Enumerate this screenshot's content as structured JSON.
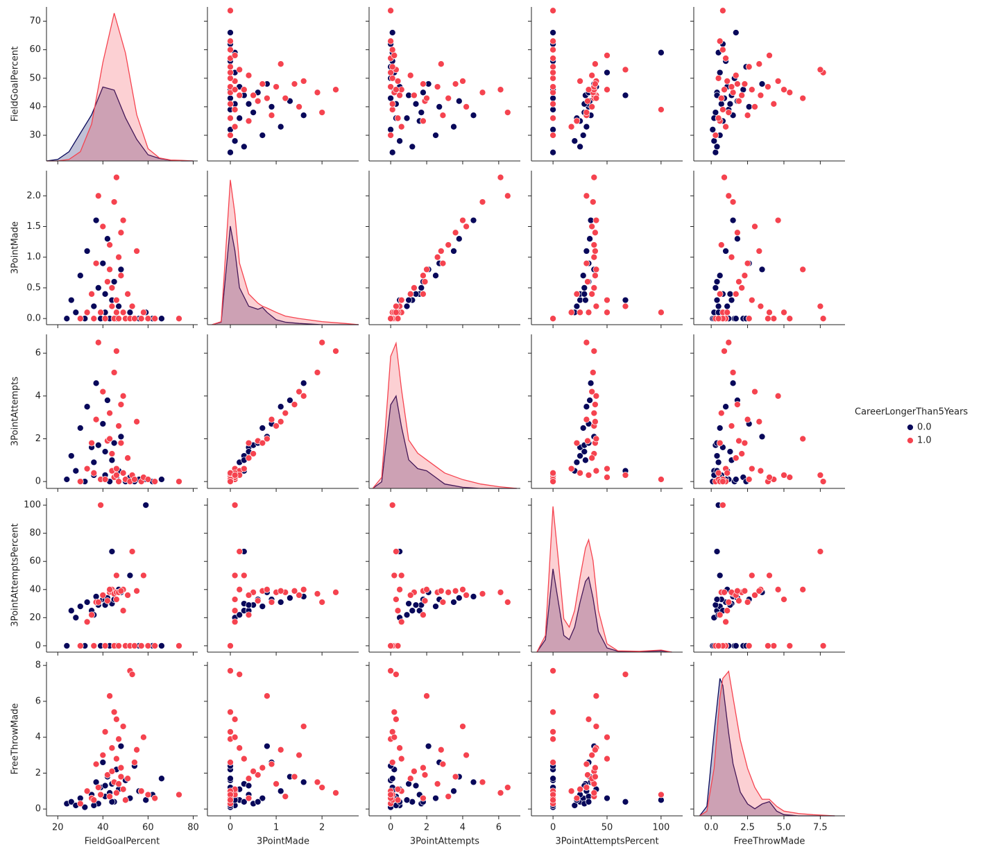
{
  "chart_data": {
    "type": "pairplot",
    "variables": [
      "FieldGoalPercent",
      "3PointMade",
      "3PointAttempts",
      "3PointAttemptsPercent",
      "FreeThrowMade"
    ],
    "legend_title": "CareerLongerThan5Years",
    "legend": "right",
    "axes": [
      {
        "xlim": [
          15,
          82
        ],
        "xticks": [
          20,
          40,
          60,
          80
        ],
        "ylim": [
          21,
          75
        ],
        "yticks": [
          30,
          40,
          50,
          60,
          70
        ]
      },
      {
        "xlim": [
          -0.5,
          2.8
        ],
        "xticks": [
          0,
          1,
          2
        ],
        "ylim": [
          -0.1,
          2.41
        ],
        "yticks": [
          {
            "value": 0,
            "label": "0.0"
          },
          {
            "value": 0.5,
            "label": "0.5"
          },
          {
            "value": 1,
            "label": "1.0"
          },
          {
            "value": 1.5,
            "label": "1.5"
          },
          {
            "value": 2,
            "label": "2.0"
          }
        ]
      },
      {
        "xlim": [
          -1.2,
          7.2
        ],
        "xticks": [
          0,
          2,
          4,
          6
        ],
        "ylim": [
          -0.32,
          6.88
        ],
        "yticks": [
          0,
          2,
          4,
          6
        ]
      },
      {
        "xlim": [
          -20,
          120
        ],
        "xticks": [
          0,
          50,
          100
        ],
        "ylim": [
          -4.5,
          105
        ],
        "yticks": [
          0,
          20,
          40,
          60,
          80,
          100
        ]
      },
      {
        "xlim": [
          -1.2,
          9.2
        ],
        "xticks": [
          {
            "value": 0,
            "label": "0.0"
          },
          {
            "value": 2.5,
            "label": "2.5"
          },
          {
            "value": 5,
            "label": "5.0"
          },
          {
            "value": 7.5,
            "label": "7.5"
          }
        ],
        "ylim": [
          -0.38,
          8.2
        ],
        "yticks": [
          0,
          2,
          4,
          6,
          8
        ]
      }
    ],
    "series": [
      {
        "name": "0.0",
        "color": "#08085a",
        "values": [
          [
            24,
            26,
            28,
            30,
            32,
            33,
            35,
            36,
            37,
            38,
            39,
            40,
            41,
            42,
            43,
            44,
            45,
            46,
            47,
            48,
            50,
            52,
            54,
            56,
            59,
            62,
            66,
            41,
            36,
            44
          ],
          [
            0,
            0.3,
            0.1,
            0.7,
            0,
            1.1,
            0.4,
            0.2,
            1.6,
            0.5,
            0,
            0.9,
            0.1,
            1.3,
            0,
            0.3,
            0.6,
            0,
            0.2,
            0.8,
            0,
            0.1,
            0,
            0,
            0.1,
            0,
            0,
            0.4,
            0,
            0.3
          ],
          [
            0.1,
            1.2,
            0.5,
            2.5,
            0,
            3.5,
            1.6,
            0.9,
            4.6,
            1.7,
            0.1,
            2.7,
            0.3,
            3.8,
            0,
            1.0,
            1.8,
            0.2,
            0.5,
            2.1,
            0,
            0.2,
            0,
            0.1,
            0.1,
            0,
            0.1,
            1.4,
            0.3,
            0.5
          ],
          [
            0,
            25,
            20,
            28,
            0,
            31,
            25,
            22,
            35,
            29,
            0,
            33,
            33,
            34,
            0,
            30,
            33,
            0,
            40,
            38,
            0,
            50,
            0,
            0,
            100,
            0,
            0,
            29,
            0,
            67
          ],
          [
            0.3,
            0.4,
            0.2,
            0.6,
            0.1,
            1.0,
            0.8,
            0.5,
            1.5,
            0.3,
            1.2,
            2.6,
            0.7,
            1.8,
            0.9,
            1.4,
            0.4,
            2.2,
            1.1,
            3.5,
            1.6,
            0.6,
            2.4,
            1.0,
            0.5,
            0.8,
            1.7,
            1.3,
            0.2,
            0.4
          ]
        ]
      },
      {
        "name": "1.0",
        "color": "#f5434f",
        "values": [
          [
            30,
            33,
            35,
            37,
            38,
            39,
            40,
            41,
            42,
            43,
            44,
            44,
            45,
            45,
            46,
            46,
            47,
            47,
            48,
            49,
            49,
            50,
            51,
            52,
            53,
            54,
            55,
            57,
            58,
            60,
            63,
            73.7,
            43,
            48,
            36,
            46
          ],
          [
            0,
            0.1,
            0.4,
            0.9,
            2.0,
            0.1,
            1.5,
            0,
            0.6,
            1.2,
            0.2,
            0.5,
            1.9,
            0,
            2.3,
            0.3,
            1.0,
            0,
            0.7,
            0.1,
            1.6,
            0,
            0.4,
            0,
            0.2,
            0,
            1.1,
            0,
            0.1,
            0,
            0,
            0,
            0.8,
            1.4,
            0,
            0.1
          ],
          [
            0,
            0.6,
            1.8,
            2.9,
            6.5,
            0.1,
            4.2,
            0.1,
            1.9,
            3.2,
            0.5,
            1.3,
            5.1,
            0.2,
            6.1,
            0.6,
            2.6,
            0,
            1.8,
            0.4,
            4.0,
            0.1,
            1.1,
            0,
            0.3,
            0.1,
            2.8,
            0,
            0.2,
            0.1,
            0,
            0,
            2.0,
            3.6,
            0.4,
            0.3
          ],
          [
            0,
            17,
            22,
            31,
            31,
            100,
            36,
            0,
            32,
            38,
            40,
            38,
            37,
            0,
            38,
            50,
            38,
            0,
            39,
            25,
            40,
            0,
            36,
            0,
            67,
            0,
            39,
            0,
            50,
            0,
            0,
            0,
            40,
            39,
            0,
            33
          ],
          [
            0.3,
            1.0,
            0.6,
            2.5,
            1.2,
            0.8,
            3.0,
            4.3,
            1.9,
            0.7,
            3.4,
            2.1,
            1.5,
            5.4,
            0.9,
            2.8,
            1.4,
            3.9,
            2.3,
            1.1,
            4.6,
            0.5,
            1.7,
            7.7,
            7.5,
            2.6,
            3.3,
            1.0,
            4.0,
            0.8,
            0.6,
            0.8,
            6.3,
            1.8,
            0.5,
            5.0
          ]
        ]
      }
    ],
    "diagonals": [
      {
        "x": [
          15,
          20,
          25,
          30,
          35,
          40,
          45,
          50,
          55,
          60,
          65,
          70,
          75,
          80
        ],
        "density_lim": [
          0,
          0.05
        ],
        "densities": [
          [
            0,
            0.0005,
            0.003,
            0.009,
            0.015,
            0.024,
            0.023,
            0.014,
            0.007,
            0.002,
            0.0008,
            0.0002,
            0,
            0
          ],
          [
            0,
            0,
            0.0005,
            0.003,
            0.012,
            0.032,
            0.048,
            0.035,
            0.015,
            0.004,
            0.001,
            0.0003,
            0.0002,
            0
          ]
        ]
      },
      {
        "x": [
          -0.4,
          -0.2,
          0,
          0.1,
          0.2,
          0.4,
          0.6,
          0.7,
          0.8,
          1.0,
          1.2,
          1.5,
          2.0,
          2.5,
          2.8
        ],
        "density_lim": [
          0,
          2.5
        ],
        "densities": [
          [
            0,
            0.04,
            1.6,
            1.2,
            0.6,
            0.3,
            0.25,
            0.28,
            0.2,
            0.08,
            0.04,
            0.02,
            0,
            0,
            0
          ],
          [
            0,
            0.05,
            2.35,
            1.8,
            1.0,
            0.5,
            0.35,
            0.3,
            0.27,
            0.2,
            0.14,
            0.1,
            0.05,
            0.02,
            0
          ]
        ]
      },
      {
        "x": [
          -1,
          -0.5,
          0,
          0.3,
          0.6,
          1,
          1.5,
          2,
          2.5,
          3,
          4,
          5,
          6,
          7
        ],
        "density_lim": [
          0,
          0.7
        ],
        "densities": [
          [
            0,
            0.03,
            0.38,
            0.42,
            0.28,
            0.13,
            0.09,
            0.08,
            0.05,
            0.02,
            0.005,
            0,
            0,
            0
          ],
          [
            0,
            0.05,
            0.6,
            0.66,
            0.45,
            0.22,
            0.16,
            0.13,
            0.1,
            0.07,
            0.04,
            0.02,
            0.008,
            0
          ]
        ]
      },
      {
        "x": [
          -15,
          -7,
          0,
          5,
          10,
          15,
          20,
          25,
          30,
          33,
          37,
          42,
          50,
          60,
          80,
          100,
          110
        ],
        "density_lim": [
          0,
          0.037
        ],
        "densities": [
          [
            0,
            0.003,
            0.02,
            0.012,
            0.004,
            0.003,
            0.006,
            0.012,
            0.017,
            0.018,
            0.013,
            0.005,
            0.001,
            0.0002,
            0.0001,
            0.0003,
            0
          ],
          [
            0,
            0.004,
            0.035,
            0.022,
            0.008,
            0.006,
            0.01,
            0.018,
            0.025,
            0.027,
            0.022,
            0.01,
            0.002,
            0.0003,
            0.0002,
            0.0005,
            0
          ]
        ]
      },
      {
        "x": [
          -0.8,
          -0.3,
          0.2,
          0.6,
          0.8,
          1.2,
          1.5,
          2,
          2.5,
          3,
          3.5,
          4,
          4.5,
          5,
          6,
          7,
          8.5
        ],
        "density_lim": [
          0,
          0.65
        ],
        "densities": [
          [
            0,
            0.04,
            0.35,
            0.58,
            0.55,
            0.35,
            0.22,
            0.1,
            0.05,
            0.03,
            0.05,
            0.06,
            0.02,
            0.005,
            0,
            0,
            0
          ],
          [
            0,
            0.02,
            0.2,
            0.5,
            0.58,
            0.61,
            0.5,
            0.32,
            0.2,
            0.12,
            0.07,
            0.07,
            0.04,
            0.02,
            0.01,
            0.005,
            0
          ]
        ]
      }
    ]
  }
}
